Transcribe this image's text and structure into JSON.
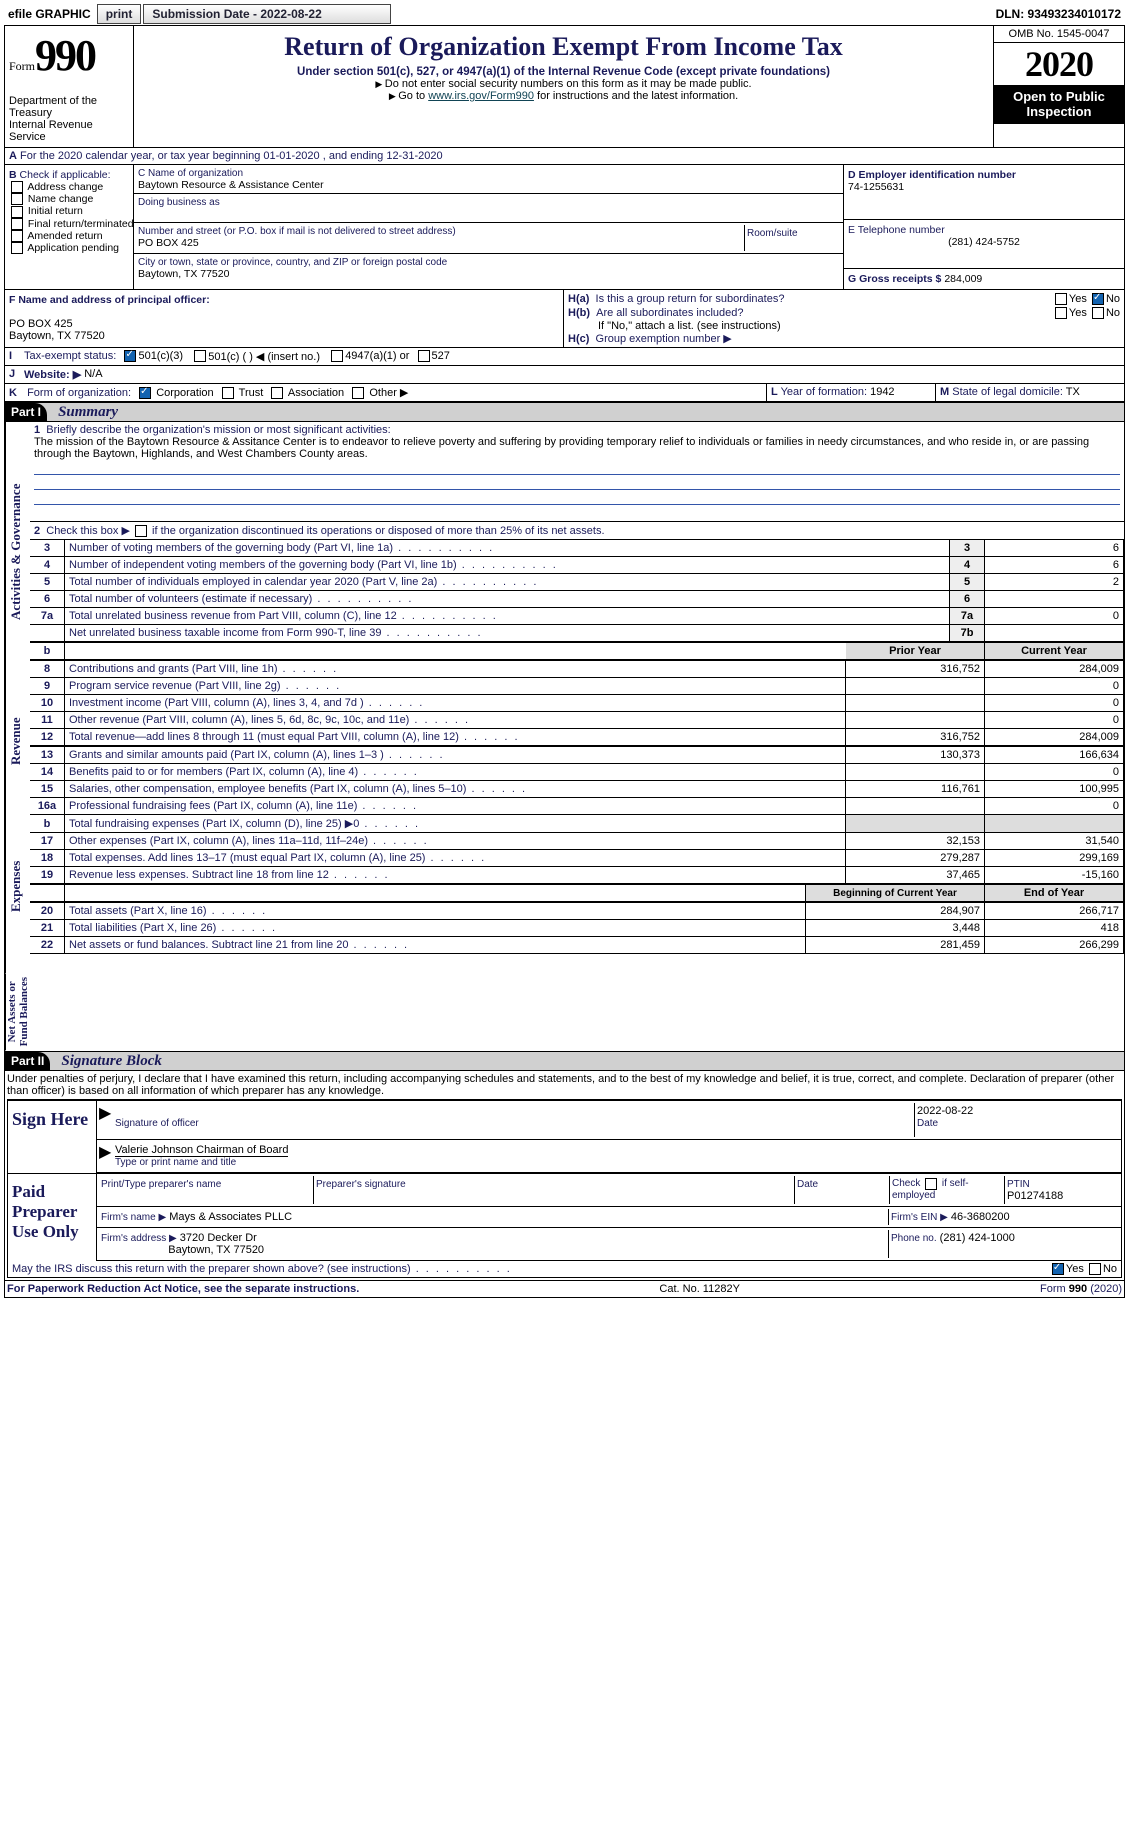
{
  "topbar": {
    "efile_label": "efile GRAPHIC",
    "print_btn": "print",
    "sub_date_label": "Submission Date - 2022-08-22",
    "dln_label": "DLN: 93493234010172"
  },
  "header": {
    "form_word": "Form",
    "form_no": "990",
    "dept": "Department of the Treasury\nInternal Revenue Service",
    "title": "Return of Organization Exempt From Income Tax",
    "subtitle": "Under section 501(c), 527, or 4947(a)(1) of the Internal Revenue Code (except private foundations)",
    "hint1": "Do not enter social security numbers on this form as it may be made public.",
    "hint2_a": "Go to ",
    "hint2_link": "www.irs.gov/Form990",
    "hint2_b": " for instructions and the latest information.",
    "omb": "OMB No. 1545-0047",
    "year": "2020",
    "otp": "Open to Public\nInspection"
  },
  "A": {
    "text": "For the 2020 calendar year, or tax year beginning 01-01-2020    , and ending 12-31-2020"
  },
  "B": {
    "label": "Check if applicable:",
    "items": [
      "Address change",
      "Name change",
      "Initial return",
      "Final return/terminated",
      "Amended return",
      "Application pending"
    ]
  },
  "C": {
    "name_label": "C Name of organization",
    "name": "Baytown Resource & Assistance Center",
    "dba_label": "Doing business as",
    "addr_label": "Number and street (or P.O. box if mail is not delivered to street address)",
    "addr": "PO BOX 425",
    "room_label": "Room/suite",
    "city_label": "City or town, state or province, country, and ZIP or foreign postal code",
    "city": "Baytown, TX  77520"
  },
  "D": {
    "label": "D Employer identification number",
    "val": "74-1255631"
  },
  "E": {
    "label": "E Telephone number",
    "val": "(281) 424-5752"
  },
  "G": {
    "label": "G Gross receipts $",
    "val": "284,009"
  },
  "F": {
    "label": "F  Name and address of principal officer:",
    "addr1": "PO BOX 425",
    "addr2": "Baytown, TX  77520"
  },
  "H": {
    "a": "Is this a group return for subordinates?",
    "b": "Are all subordinates included?",
    "yes": "Yes",
    "no": "No",
    "note": "If \"No,\" attach a list. (see instructions)",
    "c": "Group exemption number ▶"
  },
  "I": {
    "label": "Tax-exempt status:",
    "c3": "501(c)(3)",
    "c": "501(c) (  ) ◀ (insert no.)",
    "a1": "4947(a)(1) or",
    "f27": "527"
  },
  "J": {
    "label": "Website: ▶",
    "val": "N/A"
  },
  "K": {
    "label": "Form of organization:",
    "corp": "Corporation",
    "trust": "Trust",
    "assoc": "Association",
    "other": "Other ▶"
  },
  "L": {
    "label": "Year of formation:",
    "val": "1942"
  },
  "M": {
    "label": "State of legal domicile:",
    "val": "TX"
  },
  "part1": {
    "hdr": "Part I",
    "title": "Summary",
    "l1_label": "Briefly describe the organization's mission or most significant activities:",
    "l1_text": "The mission of the Baytown Resource & Assitance Center is to endeavor to relieve poverty and suffering by providing temporary relief to individuals or families in needy circumstances, and who reside in, or are passing through the Baytown, Highlands, and West Chambers County areas.",
    "l2": "Check this box ▶  if the organization discontinued its operations or disposed of more than 25% of its net assets.",
    "rows_gov": [
      {
        "n": "3",
        "t": "Number of voting members of the governing body (Part VI, line 1a)",
        "box": "3",
        "v": "6"
      },
      {
        "n": "4",
        "t": "Number of independent voting members of the governing body (Part VI, line 1b)",
        "box": "4",
        "v": "6"
      },
      {
        "n": "5",
        "t": "Total number of individuals employed in calendar year 2020 (Part V, line 2a)",
        "box": "5",
        "v": "2"
      },
      {
        "n": "6",
        "t": "Total number of volunteers (estimate if necessary)",
        "box": "6",
        "v": ""
      },
      {
        "n": "7a",
        "t": "Total unrelated business revenue from Part VIII, column (C), line 12",
        "box": "7a",
        "v": "0"
      },
      {
        "n": "",
        "t": "Net unrelated business taxable income from Form 990-T, line 39",
        "box": "7b",
        "v": ""
      }
    ],
    "h_prior": "Prior Year",
    "h_curr": "Current Year",
    "rows_rev": [
      {
        "n": "8",
        "t": "Contributions and grants (Part VIII, line 1h)",
        "p": "316,752",
        "c": "284,009"
      },
      {
        "n": "9",
        "t": "Program service revenue (Part VIII, line 2g)",
        "p": "",
        "c": "0"
      },
      {
        "n": "10",
        "t": "Investment income (Part VIII, column (A), lines 3, 4, and 7d )",
        "p": "",
        "c": "0"
      },
      {
        "n": "11",
        "t": "Other revenue (Part VIII, column (A), lines 5, 6d, 8c, 9c, 10c, and 11e)",
        "p": "",
        "c": "0"
      },
      {
        "n": "12",
        "t": "Total revenue—add lines 8 through 11 (must equal Part VIII, column (A), line 12)",
        "p": "316,752",
        "c": "284,009"
      }
    ],
    "rows_exp": [
      {
        "n": "13",
        "t": "Grants and similar amounts paid (Part IX, column (A), lines 1–3 )",
        "p": "130,373",
        "c": "166,634"
      },
      {
        "n": "14",
        "t": "Benefits paid to or for members (Part IX, column (A), line 4)",
        "p": "",
        "c": "0"
      },
      {
        "n": "15",
        "t": "Salaries, other compensation, employee benefits (Part IX, column (A), lines 5–10)",
        "p": "116,761",
        "c": "100,995"
      },
      {
        "n": "16a",
        "t": "Professional fundraising fees (Part IX, column (A), line 11e)",
        "p": "",
        "c": "0"
      },
      {
        "n": "b",
        "t": "Total fundraising expenses (Part IX, column (D), line 25) ▶0",
        "p": "—shade—",
        "c": "—shade—"
      },
      {
        "n": "17",
        "t": "Other expenses (Part IX, column (A), lines 11a–11d, 11f–24e)",
        "p": "32,153",
        "c": "31,540"
      },
      {
        "n": "18",
        "t": "Total expenses. Add lines 13–17 (must equal Part IX, column (A), line 25)",
        "p": "279,287",
        "c": "299,169"
      },
      {
        "n": "19",
        "t": "Revenue less expenses. Subtract line 18 from line 12",
        "p": "37,465",
        "c": "-15,160"
      }
    ],
    "h_beg": "Beginning of Current Year",
    "h_end": "End of Year",
    "rows_na": [
      {
        "n": "20",
        "t": "Total assets (Part X, line 16)",
        "p": "284,907",
        "c": "266,717"
      },
      {
        "n": "21",
        "t": "Total liabilities (Part X, line 26)",
        "p": "3,448",
        "c": "418"
      },
      {
        "n": "22",
        "t": "Net assets or fund balances. Subtract line 21 from line 20",
        "p": "281,459",
        "c": "266,299"
      }
    ]
  },
  "part2": {
    "hdr": "Part II",
    "title": "Signature Block",
    "decl": "Under penalties of perjury, I declare that I have examined this return, including accompanying schedules and statements, and to the best of my knowledge and belief, it is true, correct, and complete. Declaration of preparer (other than officer) is based on all information of which preparer has any knowledge.",
    "sign_here": "Sign Here",
    "sig_officer": "Signature of officer",
    "sig_date": "2022-08-22",
    "date_lbl": "Date",
    "officer": "Valerie Johnson  Chairman of Board",
    "type_name": "Type or print name and title",
    "paid": "Paid Preparer Use Only",
    "pp_name_lbl": "Print/Type preparer's name",
    "pp_sig_lbl": "Preparer's signature",
    "pp_date": "Date",
    "pp_check": "Check  if self-employed",
    "ptin_lbl": "PTIN",
    "ptin": "P01274188",
    "firm_name_lbl": "Firm's name   ▶",
    "firm_name": "Mays & Associates PLLC",
    "firm_ein_lbl": "Firm's EIN ▶",
    "firm_ein": "46-3680200",
    "firm_addr_lbl": "Firm's address ▶",
    "firm_addr": "3720 Decker Dr",
    "firm_city": "Baytown, TX  77520",
    "phone_lbl": "Phone no.",
    "phone": "(281) 424-1000",
    "discuss": "May the IRS discuss this return with the preparer shown above? (see instructions)"
  },
  "footer": {
    "pra": "For Paperwork Reduction Act Notice, see the separate instructions.",
    "cat": "Cat. No. 11282Y",
    "form": "Form 990 (2020)"
  }
}
